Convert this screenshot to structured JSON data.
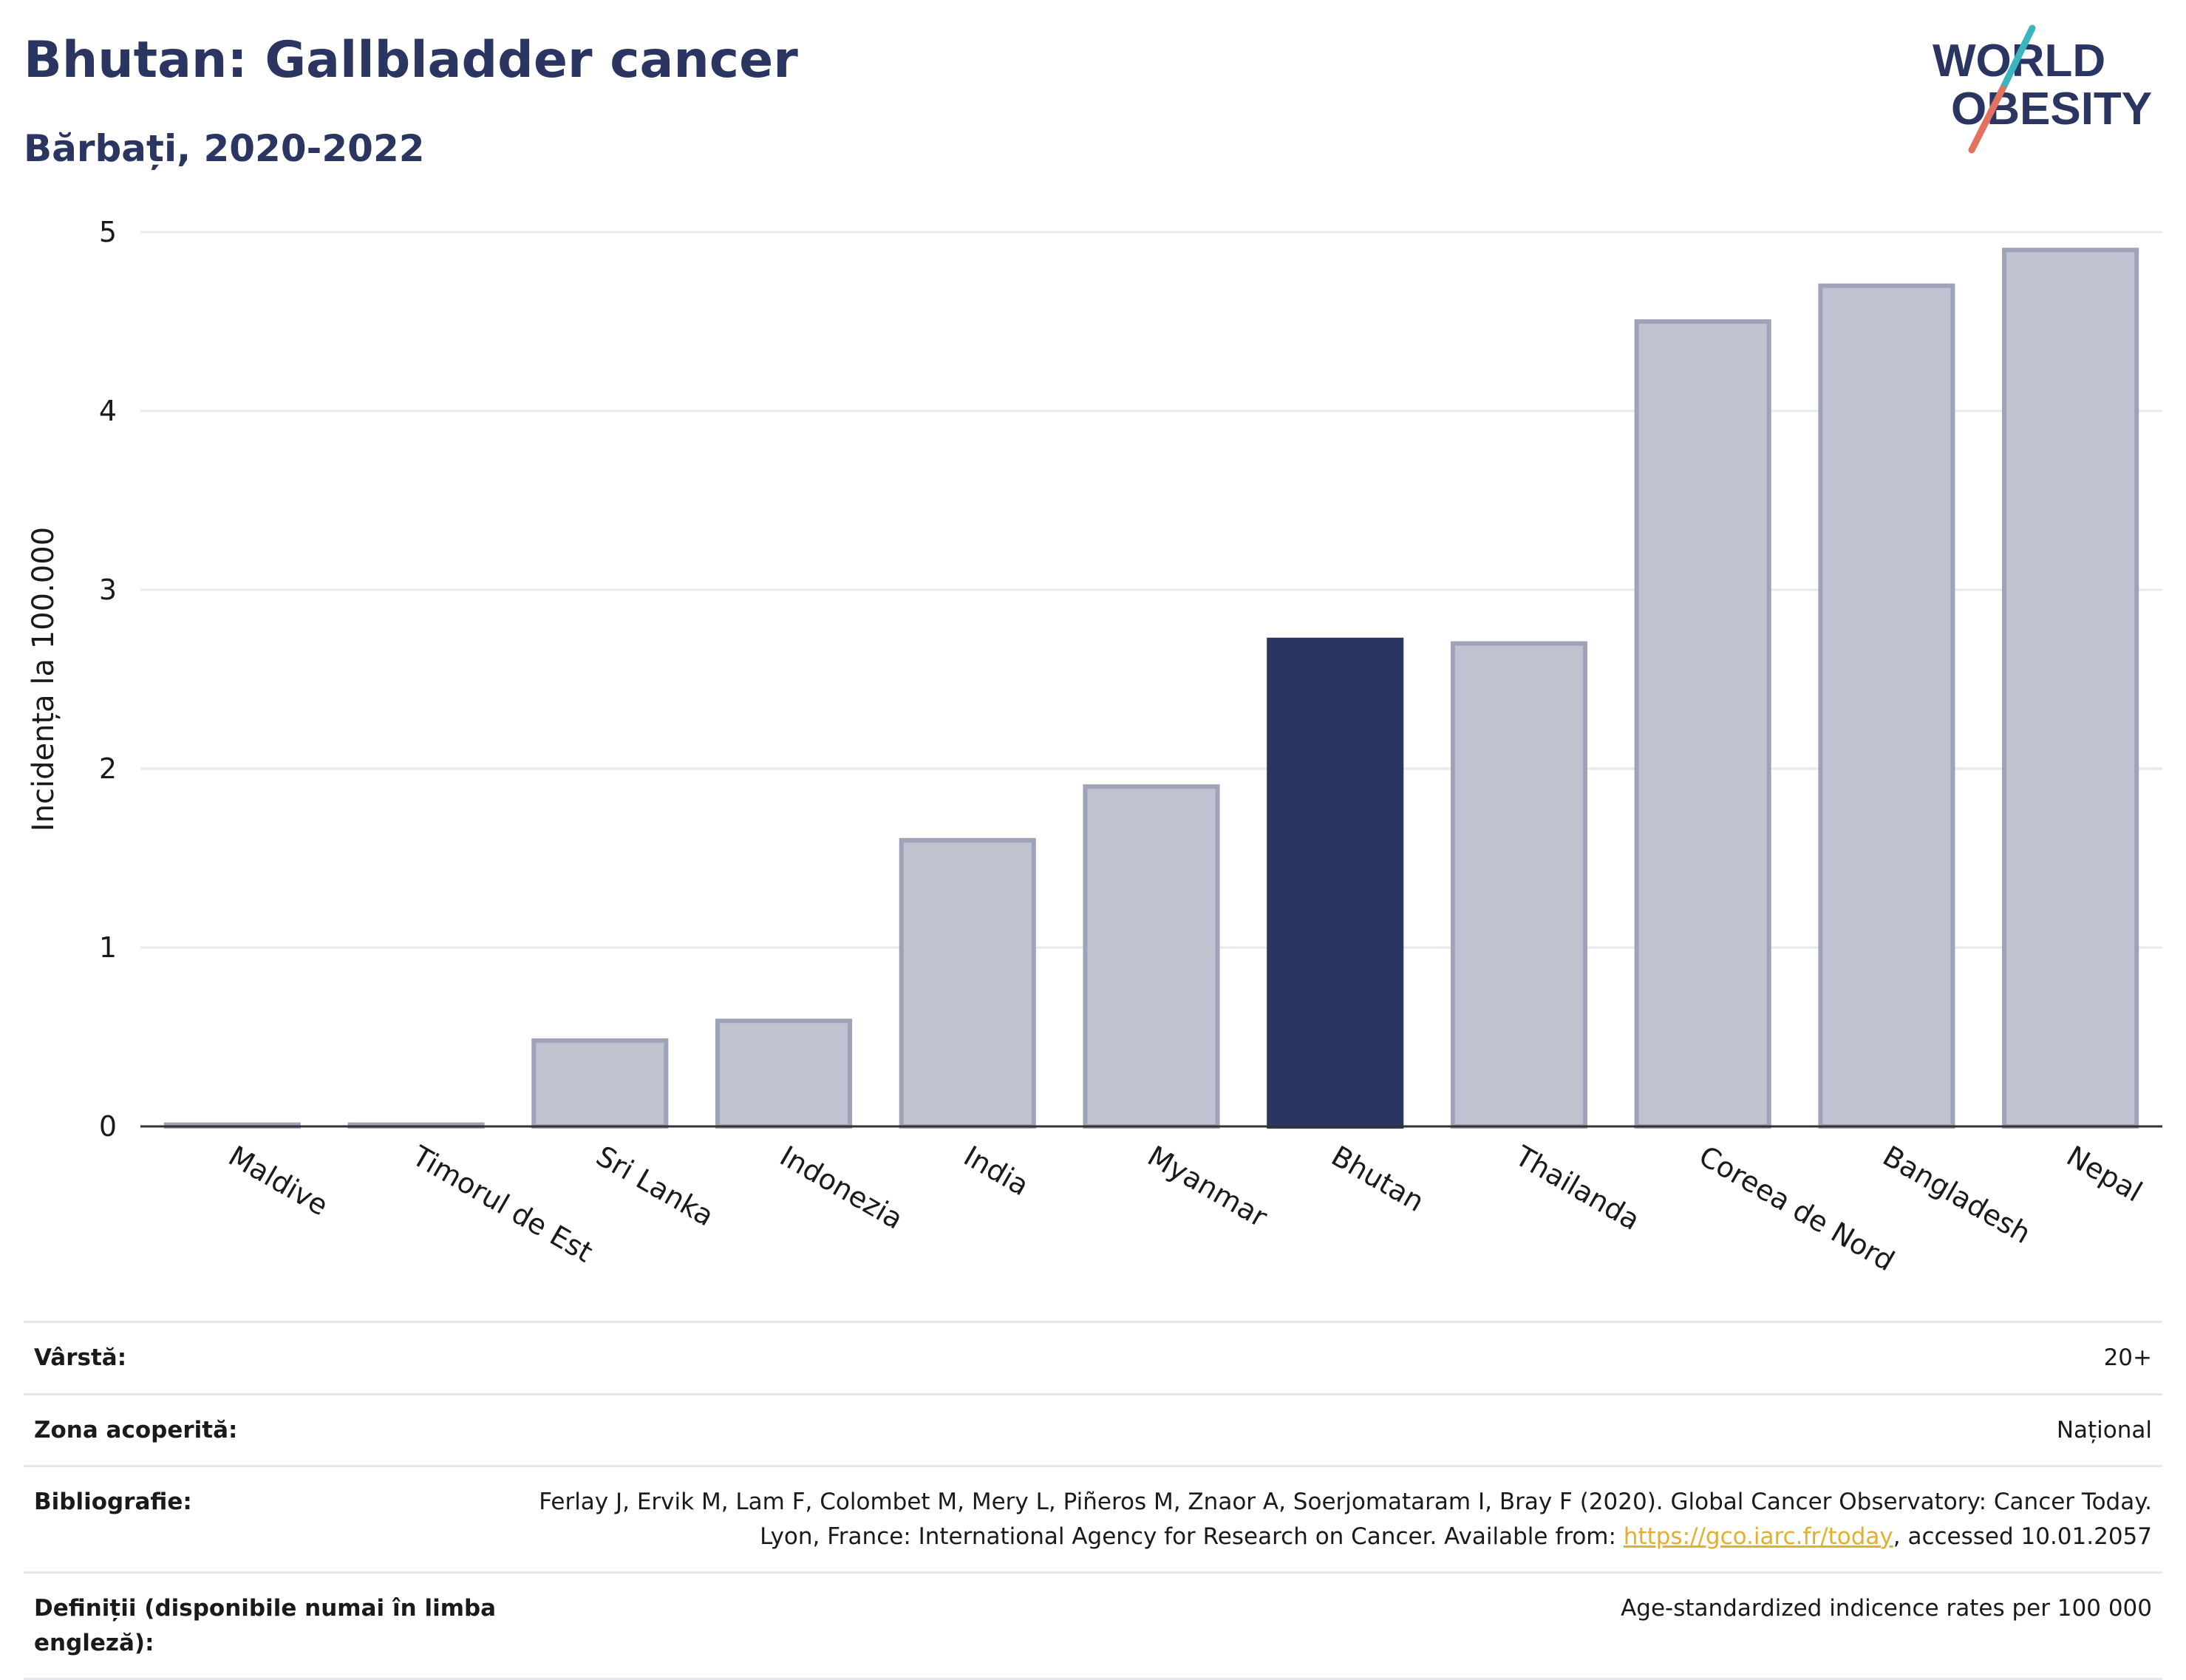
{
  "header": {
    "title": "Bhutan: Gallbladder cancer",
    "subtitle": "Bărbați, 2020-2022"
  },
  "logo": {
    "line1": "WORLD",
    "line2": "OBESITY"
  },
  "colors": {
    "highlight_bar": "#2b3561",
    "other_bar": "#bfc3d0",
    "other_bar_border": "#9ea3b8",
    "axis": "#333333",
    "grid": "#e6e9ee",
    "brand_text": "#2b3561",
    "logo_teal": "#3bb6bf",
    "logo_coral": "#e4705f",
    "link": "#e0b02e"
  },
  "chart_data": {
    "type": "bar",
    "title": "",
    "xlabel": "",
    "ylabel": "Incidența la 100.000",
    "ylim": [
      0,
      5
    ],
    "yticks": [
      0,
      1,
      2,
      3,
      4,
      5
    ],
    "grid": true,
    "highlight": "Bhutan",
    "categories": [
      "Maldive",
      "Timorul de Est",
      "Sri Lanka",
      "Indonezia",
      "India",
      "Myanmar",
      "Bhutan",
      "Thailanda",
      "Coreea de Nord",
      "Bangladesh",
      "Nepal"
    ],
    "values": [
      0.01,
      0.01,
      0.48,
      0.59,
      1.6,
      1.9,
      2.72,
      2.7,
      4.5,
      4.7,
      4.9
    ]
  },
  "info": {
    "rows": [
      {
        "key": "Vârstă:",
        "value": "20+"
      },
      {
        "key": "Zona acoperită:",
        "value": "Național"
      }
    ],
    "bibliography": {
      "key": "Bibliografie:",
      "text_before": "Ferlay J, Ervik M, Lam F, Colombet M, Mery L, Piñeros M, Znaor A, Soerjomataram I, Bray F (2020). Global Cancer Observatory: Cancer Today. Lyon, France: International Agency for Research on Cancer. Available from: ",
      "link": "https://gco.iarc.fr/today",
      "text_after": ", accessed 10.01.2057"
    },
    "definitions": {
      "key": "Definiții (disponibile numai în limba engleză):",
      "value": "Age-standardized indicence rates per 100 000"
    }
  }
}
